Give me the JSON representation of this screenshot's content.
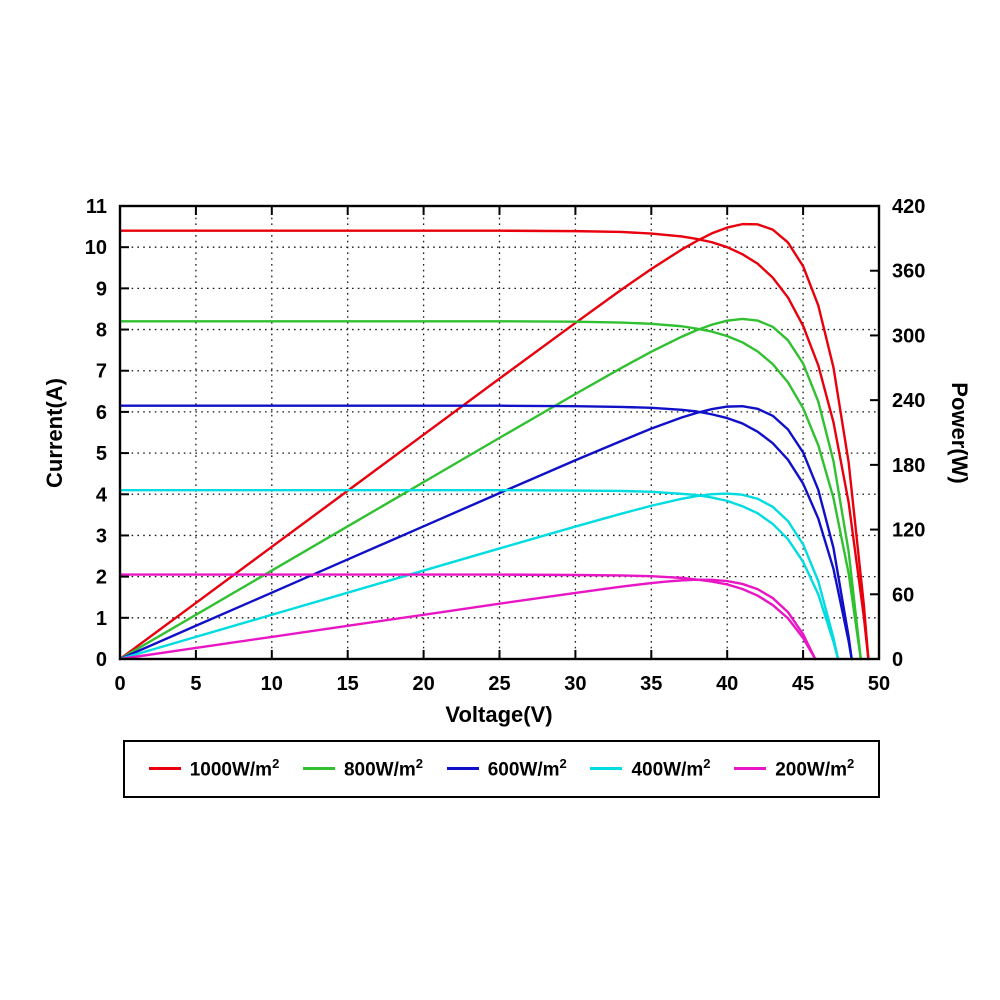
{
  "chart_data": {
    "type": "line",
    "title": "",
    "xlabel": "Voltage(V)",
    "ylabel_left": "Current(A)",
    "ylabel_right": "Power(W)",
    "xlim": [
      0,
      50
    ],
    "ylim_left": [
      0,
      11
    ],
    "ylim_right": [
      0,
      420
    ],
    "xticks": [
      0,
      5,
      10,
      15,
      20,
      25,
      30,
      35,
      40,
      45,
      50
    ],
    "yticks_left": [
      0,
      1,
      2,
      3,
      4,
      5,
      6,
      7,
      8,
      9,
      10,
      11
    ],
    "yticks_right": [
      0,
      60,
      120,
      180,
      240,
      300,
      360,
      420
    ],
    "grid": true,
    "legend_position": "bottom",
    "series": [
      {
        "name": "1000W/m²",
        "label_base": "1000W/m",
        "label_sup": "2",
        "color": "#e8000d",
        "isc_A": 10.4,
        "voc_V": 49.3,
        "pmax_W": 403,
        "vmp_V": 40,
        "iv": [
          [
            0,
            10.4
          ],
          [
            5,
            10.4
          ],
          [
            10,
            10.4
          ],
          [
            15,
            10.4
          ],
          [
            20,
            10.4
          ],
          [
            25,
            10.4
          ],
          [
            30,
            10.39
          ],
          [
            33,
            10.37
          ],
          [
            35,
            10.33
          ],
          [
            37,
            10.26
          ],
          [
            38,
            10.2
          ],
          [
            39,
            10.12
          ],
          [
            40,
            10.0
          ],
          [
            41,
            9.83
          ],
          [
            42,
            9.6
          ],
          [
            43,
            9.26
          ],
          [
            44,
            8.78
          ],
          [
            45,
            8.09
          ],
          [
            46,
            7.13
          ],
          [
            47,
            5.75
          ],
          [
            48,
            3.8
          ],
          [
            49,
            1.03
          ],
          [
            49.3,
            0
          ]
        ],
        "pv": [
          [
            0,
            0
          ],
          [
            5,
            52
          ],
          [
            10,
            104
          ],
          [
            15,
            156
          ],
          [
            20,
            208
          ],
          [
            25,
            260
          ],
          [
            30,
            311.6
          ],
          [
            33,
            342.1
          ],
          [
            35,
            361.6
          ],
          [
            37,
            379.6
          ],
          [
            38,
            387.6
          ],
          [
            39,
            394.7
          ],
          [
            40,
            400
          ],
          [
            41,
            403.2
          ],
          [
            42,
            403
          ],
          [
            43,
            398.1
          ],
          [
            44,
            386.2
          ],
          [
            45,
            364.2
          ],
          [
            46,
            327.8
          ],
          [
            47,
            270.3
          ],
          [
            48,
            182.4
          ],
          [
            49,
            50.4
          ],
          [
            49.3,
            0
          ]
        ]
      },
      {
        "name": "800W/m²",
        "label_base": "800W/m",
        "label_sup": "2",
        "color": "#30c030",
        "isc_A": 8.2,
        "voc_V": 48.8,
        "pmax_W": 315,
        "vmp_V": 40,
        "iv": [
          [
            0,
            8.2
          ],
          [
            5,
            8.2
          ],
          [
            10,
            8.2
          ],
          [
            15,
            8.2
          ],
          [
            20,
            8.2
          ],
          [
            25,
            8.2
          ],
          [
            30,
            8.19
          ],
          [
            33,
            8.17
          ],
          [
            35,
            8.14
          ],
          [
            37,
            8.08
          ],
          [
            38,
            8.02
          ],
          [
            39,
            7.95
          ],
          [
            40,
            7.84
          ],
          [
            41,
            7.69
          ],
          [
            42,
            7.47
          ],
          [
            43,
            7.16
          ],
          [
            44,
            6.72
          ],
          [
            45,
            6.09
          ],
          [
            46,
            5.19
          ],
          [
            47,
            3.91
          ],
          [
            48,
            2.08
          ],
          [
            48.8,
            0
          ]
        ],
        "pv": [
          [
            0,
            0
          ],
          [
            5,
            41
          ],
          [
            10,
            82
          ],
          [
            15,
            123
          ],
          [
            20,
            164
          ],
          [
            25,
            205
          ],
          [
            30,
            245.7
          ],
          [
            33,
            269.6
          ],
          [
            35,
            284.9
          ],
          [
            37,
            298.8
          ],
          [
            38,
            304.9
          ],
          [
            39,
            310
          ],
          [
            40,
            313.7
          ],
          [
            41,
            315.3
          ],
          [
            42,
            313.8
          ],
          [
            43,
            308
          ],
          [
            44,
            295.6
          ],
          [
            45,
            274
          ],
          [
            46,
            238.7
          ],
          [
            47,
            183.6
          ],
          [
            48,
            99.6
          ],
          [
            48.8,
            0
          ]
        ]
      },
      {
        "name": "600W/m²",
        "label_base": "600W/m",
        "label_sup": "2",
        "color": "#1010c8",
        "isc_A": 6.15,
        "voc_V": 48.2,
        "pmax_W": 234,
        "vmp_V": 40,
        "iv": [
          [
            0,
            6.15
          ],
          [
            5,
            6.15
          ],
          [
            10,
            6.15
          ],
          [
            15,
            6.15
          ],
          [
            20,
            6.15
          ],
          [
            25,
            6.15
          ],
          [
            30,
            6.14
          ],
          [
            33,
            6.12
          ],
          [
            35,
            6.1
          ],
          [
            37,
            6.05
          ],
          [
            38,
            6.01
          ],
          [
            39,
            5.94
          ],
          [
            40,
            5.85
          ],
          [
            41,
            5.72
          ],
          [
            42,
            5.52
          ],
          [
            43,
            5.24
          ],
          [
            44,
            4.84
          ],
          [
            45,
            4.26
          ],
          [
            46,
            3.41
          ],
          [
            47,
            2.19
          ],
          [
            48,
            0.43
          ],
          [
            48.2,
            0
          ]
        ],
        "pv": [
          [
            0,
            0
          ],
          [
            5,
            30.8
          ],
          [
            10,
            61.5
          ],
          [
            15,
            92.3
          ],
          [
            20,
            123
          ],
          [
            25,
            153.8
          ],
          [
            30,
            184.3
          ],
          [
            33,
            202
          ],
          [
            35,
            213.6
          ],
          [
            37,
            223.9
          ],
          [
            38,
            228.2
          ],
          [
            39,
            231.7
          ],
          [
            40,
            234
          ],
          [
            41,
            234.4
          ],
          [
            42,
            232
          ],
          [
            43,
            225.5
          ],
          [
            44,
            212.9
          ],
          [
            45,
            191.5
          ],
          [
            46,
            156.9
          ],
          [
            47,
            103
          ],
          [
            48,
            20.6
          ],
          [
            48.2,
            0
          ]
        ]
      },
      {
        "name": "400W/m²",
        "label_base": "400W/m",
        "label_sup": "2",
        "color": "#00dce0",
        "isc_A": 4.1,
        "voc_V": 47.3,
        "pmax_W": 153,
        "vmp_V": 39.5,
        "iv": [
          [
            0,
            4.1
          ],
          [
            5,
            4.1
          ],
          [
            10,
            4.1
          ],
          [
            15,
            4.1
          ],
          [
            20,
            4.1
          ],
          [
            25,
            4.1
          ],
          [
            30,
            4.09
          ],
          [
            33,
            4.08
          ],
          [
            35,
            4.06
          ],
          [
            37,
            4.01
          ],
          [
            38,
            3.98
          ],
          [
            39,
            3.92
          ],
          [
            40,
            3.84
          ],
          [
            41,
            3.71
          ],
          [
            42,
            3.54
          ],
          [
            43,
            3.28
          ],
          [
            44,
            2.91
          ],
          [
            45,
            2.36
          ],
          [
            46,
            1.57
          ],
          [
            47,
            0.42
          ],
          [
            47.3,
            0
          ]
        ],
        "pv": [
          [
            0,
            0
          ],
          [
            5,
            20.5
          ],
          [
            10,
            41
          ],
          [
            15,
            61.5
          ],
          [
            20,
            82
          ],
          [
            25,
            102.5
          ],
          [
            30,
            122.8
          ],
          [
            33,
            134.6
          ],
          [
            35,
            142.1
          ],
          [
            37,
            148.5
          ],
          [
            38,
            151.1
          ],
          [
            39,
            152.8
          ],
          [
            40,
            153.4
          ],
          [
            41,
            152.3
          ],
          [
            42,
            148.6
          ],
          [
            43,
            141.1
          ],
          [
            44,
            128
          ],
          [
            45,
            106.3
          ],
          [
            46,
            72.1
          ],
          [
            47,
            19.5
          ],
          [
            47.3,
            0
          ]
        ]
      },
      {
        "name": "200W/m²",
        "label_base": "200W/m",
        "label_sup": "2",
        "color": "#e816c4",
        "isc_A": 2.05,
        "voc_V": 45.8,
        "pmax_W": 73.5,
        "vmp_V": 37.5,
        "iv": [
          [
            0,
            2.05
          ],
          [
            5,
            2.05
          ],
          [
            10,
            2.05
          ],
          [
            15,
            2.05
          ],
          [
            20,
            2.05
          ],
          [
            25,
            2.05
          ],
          [
            30,
            2.04
          ],
          [
            33,
            2.03
          ],
          [
            35,
            2.01
          ],
          [
            36,
            1.99
          ],
          [
            37,
            1.97
          ],
          [
            38,
            1.93
          ],
          [
            39,
            1.88
          ],
          [
            40,
            1.81
          ],
          [
            41,
            1.7
          ],
          [
            42,
            1.54
          ],
          [
            43,
            1.31
          ],
          [
            44,
            0.99
          ],
          [
            45,
            0.51
          ],
          [
            45.8,
            0
          ]
        ],
        "pv": [
          [
            0,
            0
          ],
          [
            5,
            10.3
          ],
          [
            10,
            20.5
          ],
          [
            15,
            30.8
          ],
          [
            20,
            41
          ],
          [
            25,
            51.3
          ],
          [
            30,
            61.3
          ],
          [
            33,
            67.1
          ],
          [
            35,
            70.4
          ],
          [
            36,
            71.8
          ],
          [
            37,
            72.9
          ],
          [
            38,
            73.5
          ],
          [
            39,
            73.4
          ],
          [
            40,
            72.3
          ],
          [
            41,
            69.6
          ],
          [
            42,
            64.8
          ],
          [
            43,
            56.5
          ],
          [
            44,
            43.5
          ],
          [
            45,
            23
          ],
          [
            45.8,
            0
          ]
        ]
      }
    ]
  }
}
